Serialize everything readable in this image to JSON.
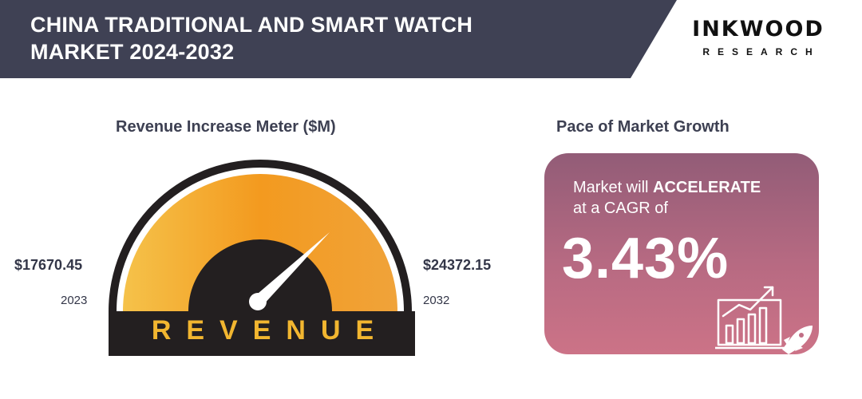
{
  "header": {
    "title_line1": "CHINA TRADITIONAL AND SMART WATCH",
    "title_line2": "MARKET 2024-2032",
    "band_color": "#3f4154"
  },
  "logo": {
    "name": "INKWOOD",
    "sub": "RESEARCH"
  },
  "meter": {
    "title": "Revenue Increase Meter ($M)",
    "start_value": "$17670.45",
    "start_year": "2023",
    "end_value": "$24372.15",
    "end_year": "2032",
    "label": "REVENUE",
    "colors": {
      "arc_light": "#f5c24a",
      "arc_dark": "#f0951d",
      "base": "#231f20",
      "label": "#f2b630"
    }
  },
  "growth": {
    "title": "Pace of Market Growth",
    "text_prefix": "Market will ",
    "text_emphasis": "ACCELERATE",
    "text_suffix": "at a CAGR of",
    "cagr": "3.43%",
    "icon": "chart-rocket-icon",
    "colors": {
      "card_top": "#925c77",
      "card_bottom": "#cc7387"
    }
  }
}
